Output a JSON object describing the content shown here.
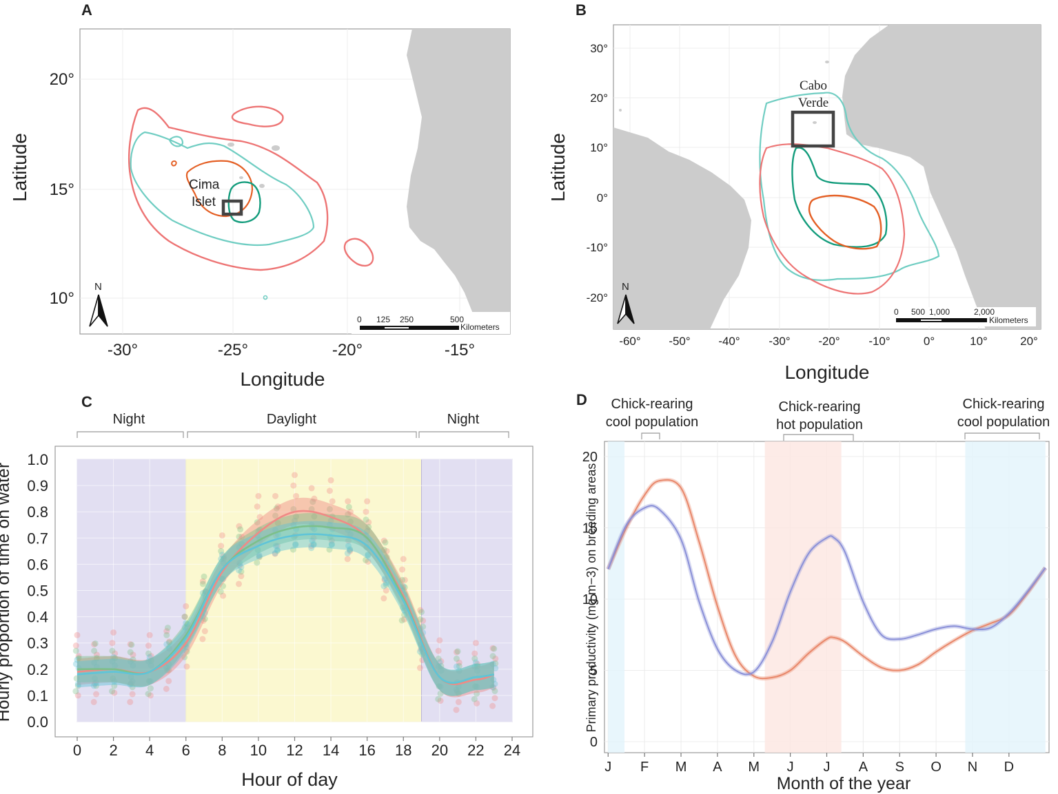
{
  "panel_a": {
    "letter": "A",
    "ylabel": "Latitude",
    "xlabel": "Longitude",
    "y_ticks": [
      "20°",
      "15°",
      "10°"
    ],
    "x_ticks": [
      "-30°",
      "-25°",
      "-20°",
      "-15°"
    ],
    "site_label_line1": "Cima",
    "site_label_line2": "Islet",
    "north": "N",
    "scale_labels": [
      "0",
      "125",
      "250",
      "500"
    ],
    "scale_unit": "Kilometers"
  },
  "panel_b": {
    "letter": "B",
    "ylabel": "Latitude",
    "xlabel": "Longitude",
    "y_ticks": [
      "30°",
      "20°",
      "10°",
      "0°",
      "-10°",
      "-20°"
    ],
    "x_ticks": [
      "-60°",
      "-50°",
      "-40°",
      "-30°",
      "-20°",
      "-10°",
      "0°",
      "10°",
      "20°"
    ],
    "site_label_line1": "Cabo",
    "site_label_line2": "Verde",
    "north": "N",
    "scale_labels": [
      "0",
      "500",
      "1,000",
      "2,000"
    ],
    "scale_unit": "Kilometers"
  },
  "panel_c": {
    "letter": "C",
    "periods": [
      "Night",
      "Daylight",
      "Night"
    ],
    "ylabel": "Hourly proportion of time on water",
    "xlabel": "Hour of day",
    "colors": {
      "night_bg": "#d6d2ec",
      "day_bg": "#fbf8d0",
      "red": "#f08a86",
      "green": "#7cc08a",
      "blue": "#5fc4d8"
    },
    "chart_data": {
      "type": "line",
      "x": [
        0,
        2,
        4,
        6,
        8,
        10,
        12,
        14,
        16,
        18,
        20,
        22,
        23
      ],
      "series": [
        {
          "name": "red",
          "values": [
            0.19,
            0.2,
            0.19,
            0.3,
            0.57,
            0.72,
            0.8,
            0.78,
            0.7,
            0.48,
            0.17,
            0.16,
            0.18
          ]
        },
        {
          "name": "green",
          "values": [
            0.2,
            0.2,
            0.19,
            0.33,
            0.58,
            0.69,
            0.74,
            0.74,
            0.7,
            0.47,
            0.17,
            0.17,
            0.18
          ]
        },
        {
          "name": "blue",
          "values": [
            0.18,
            0.19,
            0.19,
            0.32,
            0.58,
            0.67,
            0.71,
            0.71,
            0.67,
            0.46,
            0.17,
            0.17,
            0.18
          ]
        }
      ],
      "xlim": [
        0,
        24
      ],
      "ylim": [
        0,
        1
      ],
      "x_ticks": [
        "0",
        "2",
        "4",
        "6",
        "8",
        "10",
        "12",
        "14",
        "16",
        "18",
        "20",
        "22",
        "24"
      ],
      "y_ticks": [
        "0.0",
        "0.1",
        "0.2",
        "0.3",
        "0.4",
        "0.5",
        "0.6",
        "0.7",
        "0.8",
        "0.9",
        "1.0"
      ]
    }
  },
  "panel_d": {
    "letter": "D",
    "annotations": [
      {
        "line1": "Chick-rearing",
        "line2": "cool population"
      },
      {
        "line1": "Chick-rearing",
        "line2": "hot population"
      },
      {
        "line1": "Chick-rearing",
        "line2": "cool population"
      }
    ],
    "ylabel": "Primary productivity (mg m−3) on breeding areas",
    "xlabel": "Month of the year",
    "colors": {
      "cool_band": "#e4f4fb",
      "hot_band": "#fde7e3",
      "orange": "#e8876a",
      "purple": "#8a90d8"
    },
    "chart_data": {
      "type": "line",
      "x": [
        1.0,
        1.5,
        2.0,
        2.4,
        3.0,
        3.5,
        4.0,
        4.5,
        5.0,
        5.5,
        6.0,
        6.5,
        7.0,
        7.2,
        7.5,
        8.0,
        8.5,
        9.0,
        9.5,
        10.0,
        10.5,
        11.0,
        11.5,
        12.0,
        12.5,
        13.0
      ],
      "series": [
        {
          "name": "orange",
          "values": [
            12.1,
            15.0,
            17.3,
            18.3,
            17.8,
            14.0,
            9.5,
            6.0,
            4.6,
            4.5,
            5.0,
            6.2,
            7.2,
            7.3,
            7.0,
            6.0,
            5.2,
            5.0,
            5.4,
            6.3,
            7.1,
            7.8,
            8.3,
            8.9,
            10.4,
            12.2
          ]
        },
        {
          "name": "purple",
          "values": [
            12.1,
            15.2,
            16.4,
            16.3,
            14.2,
            9.8,
            6.5,
            5.0,
            4.9,
            7.0,
            10.5,
            13.2,
            14.3,
            14.3,
            13.3,
            9.8,
            7.5,
            7.2,
            7.5,
            7.9,
            8.1,
            7.9,
            8.0,
            9.0,
            10.5,
            12.2
          ]
        }
      ],
      "xlim": [
        0.9,
        13.1
      ],
      "ylim": [
        0,
        21
      ],
      "x_ticks": [
        "J",
        "F",
        "M",
        "A",
        "M",
        "J",
        "J",
        "A",
        "S",
        "O",
        "N",
        "D"
      ],
      "y_ticks": [
        "0",
        "5",
        "10",
        "15",
        "20"
      ],
      "bands": [
        {
          "label": "cool",
          "start": 1.0,
          "end": 1.45
        },
        {
          "label": "hot",
          "start": 5.3,
          "end": 7.4
        },
        {
          "label": "cool",
          "start": 10.8,
          "end": 13.0
        }
      ]
    }
  }
}
